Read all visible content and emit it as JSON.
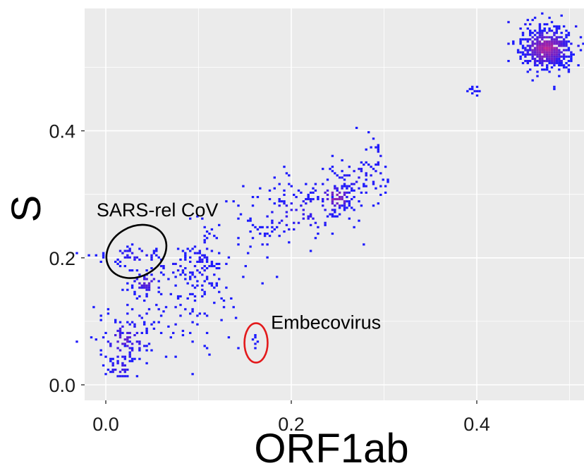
{
  "chart_data": {
    "type": "heatmap",
    "xlabel": "ORF1ab",
    "ylabel": "S",
    "xlim": [
      -0.022,
      0.51
    ],
    "ylim": [
      -0.028,
      0.585
    ],
    "x_ticks": [
      0.0,
      0.2,
      0.4
    ],
    "x_tick_labels": [
      "0.0",
      "0.2",
      "0.4"
    ],
    "y_ticks": [
      0.0,
      0.2,
      0.4
    ],
    "y_tick_labels": [
      "0.0",
      "0.2",
      "0.4"
    ],
    "grid": true,
    "colors": {
      "panel": "#ebebeb",
      "grid": "#ffffff",
      "low": "#1a1aff",
      "high": "#ff2a6a"
    },
    "cell_size": [
      0.0026,
      0.0034
    ],
    "clusters": [
      {
        "cx": 0.475,
        "cy": 0.53,
        "sx": 0.016,
        "sy": 0.018,
        "n": 420,
        "intensity": 0.75
      },
      {
        "cx": 0.398,
        "cy": 0.463,
        "sx": 0.003,
        "sy": 0.003,
        "n": 10,
        "intensity": 0.1
      },
      {
        "cx": 0.248,
        "cy": 0.295,
        "sx": 0.012,
        "sy": 0.014,
        "n": 60,
        "intensity": 0.6
      },
      {
        "cx": 0.27,
        "cy": 0.32,
        "sx": 0.02,
        "sy": 0.03,
        "n": 60,
        "intensity": 0.1
      },
      {
        "cx": 0.29,
        "cy": 0.35,
        "sx": 0.008,
        "sy": 0.03,
        "n": 20,
        "intensity": 0.1
      },
      {
        "cx": 0.21,
        "cy": 0.27,
        "sx": 0.03,
        "sy": 0.025,
        "n": 90,
        "intensity": 0.15
      },
      {
        "cx": 0.22,
        "cy": 0.32,
        "sx": 0.03,
        "sy": 0.02,
        "n": 30,
        "intensity": 0.05
      },
      {
        "cx": 0.17,
        "cy": 0.23,
        "sx": 0.01,
        "sy": 0.02,
        "n": 25,
        "intensity": 0.05
      },
      {
        "cx": 0.03,
        "cy": 0.205,
        "sx": 0.02,
        "sy": 0.008,
        "n": 45,
        "intensity": 0.15
      },
      {
        "cx": 0.045,
        "cy": 0.16,
        "sx": 0.01,
        "sy": 0.01,
        "n": 40,
        "intensity": 0.35
      },
      {
        "cx": 0.08,
        "cy": 0.185,
        "sx": 0.02,
        "sy": 0.01,
        "n": 35,
        "intensity": 0.1
      },
      {
        "cx": 0.105,
        "cy": 0.19,
        "sx": 0.01,
        "sy": 0.04,
        "n": 60,
        "intensity": 0.1
      },
      {
        "cx": 0.1,
        "cy": 0.13,
        "sx": 0.02,
        "sy": 0.04,
        "n": 45,
        "intensity": 0.05
      },
      {
        "cx": 0.02,
        "cy": 0.07,
        "sx": 0.015,
        "sy": 0.02,
        "n": 70,
        "intensity": 0.35
      },
      {
        "cx": 0.015,
        "cy": 0.025,
        "sx": 0.008,
        "sy": 0.01,
        "n": 35,
        "intensity": 0.25
      },
      {
        "cx": 0.04,
        "cy": 0.11,
        "sx": 0.02,
        "sy": 0.03,
        "n": 40,
        "intensity": 0.05
      },
      {
        "cx": 0.07,
        "cy": 0.1,
        "sx": 0.03,
        "sy": 0.04,
        "n": 35,
        "intensity": 0.05
      },
      {
        "cx": 0.161,
        "cy": 0.067,
        "sx": 0.001,
        "sy": 0.008,
        "n": 8,
        "intensity": 0.05
      },
      {
        "cx": 0.135,
        "cy": 0.2,
        "sx": 0.03,
        "sy": 0.03,
        "n": 15,
        "intensity": 0.02
      }
    ],
    "annotations": [
      {
        "text": "SARS-rel CoV",
        "label_x": -0.01,
        "label_y": 0.265,
        "ellipse": {
          "cx": 0.033,
          "cy": 0.21,
          "rx": 0.034,
          "ry": 0.039,
          "angle": -30,
          "color": "#000000"
        }
      },
      {
        "text": "Embecovirus",
        "label_x": 0.178,
        "label_y": 0.088,
        "ellipse": {
          "cx": 0.162,
          "cy": 0.066,
          "rx": 0.0125,
          "ry": 0.031,
          "angle": 0,
          "color": "#e31a1c"
        }
      }
    ]
  }
}
